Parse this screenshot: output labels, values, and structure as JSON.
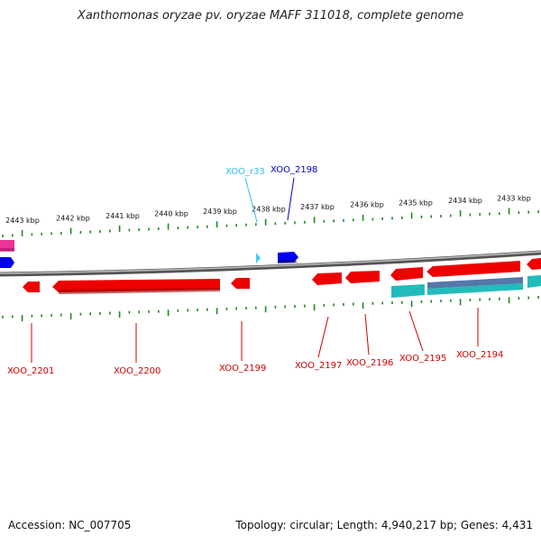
{
  "title": "Xanthomonas oryzae pv. oryzae MAFF 311018, complete genome",
  "footer": {
    "accession": "Accession: NC_007705",
    "summary": "Topology: circular; Length: 4,940,217 bp; Genes: 4,431"
  },
  "colors": {
    "forward_gene": "#0000ee",
    "reverse_gene": "#ee0000",
    "rna": "#44ccee",
    "cds_protein": "#22bbbb",
    "pink_feature": "#ee3399",
    "backbone": "#777777",
    "ticks": "#228822",
    "reverse_label": "#cc0000",
    "forward_label": "#0000cc",
    "rna_label": "#33bbee"
  },
  "scale": {
    "unit": "kbp",
    "tick_labels": [
      "2443 kbp",
      "2442 kbp",
      "2441 kbp",
      "2440 kbp",
      "2439 kbp",
      "2438 kbp",
      "2437 kbp",
      "2436 kbp",
      "2435 kbp",
      "2434 kbp",
      "2433 kbp"
    ],
    "tick_values_kbp": [
      2443,
      2442,
      2441,
      2440,
      2439,
      2438,
      2437,
      2436,
      2435,
      2434,
      2433
    ]
  },
  "upper_labels": [
    {
      "text": "XOO_r33",
      "type": "rna"
    },
    {
      "text": "XOO_2198",
      "type": "forward"
    }
  ],
  "lower_labels": [
    {
      "text": "XOO_2201"
    },
    {
      "text": "XOO_2200"
    },
    {
      "text": "XOO_2199"
    },
    {
      "text": "XOO_2197"
    },
    {
      "text": "XOO_2196"
    },
    {
      "text": "XOO_2195"
    },
    {
      "text": "XOO_2194"
    }
  ]
}
